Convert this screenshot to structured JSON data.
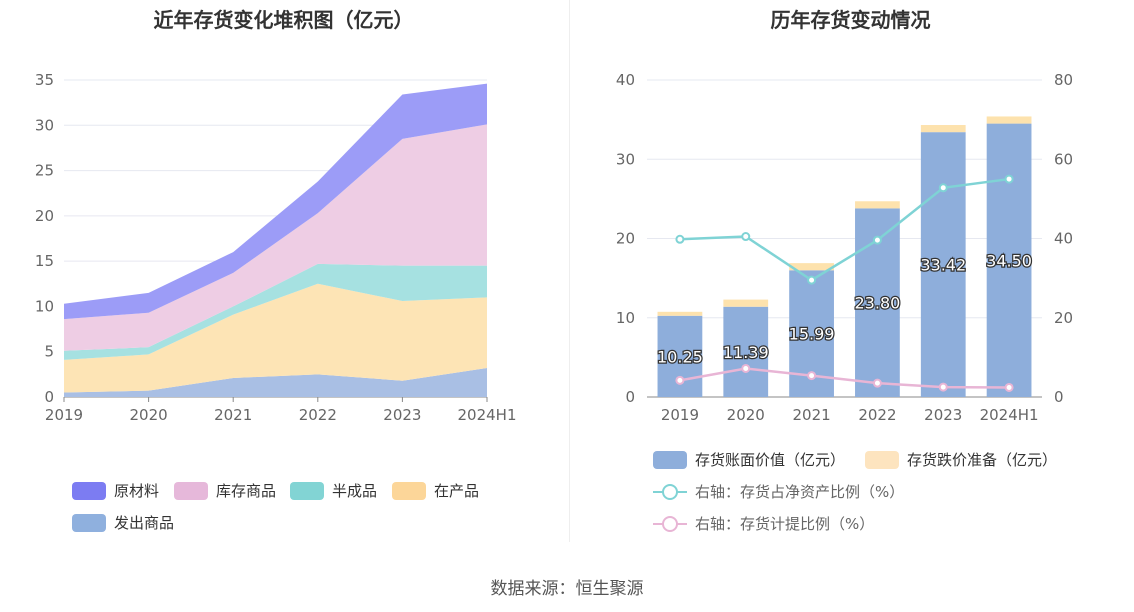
{
  "chart_data": [
    {
      "type": "area",
      "stacked": true,
      "title": "近年存货变化堆积图（亿元）",
      "categories": [
        "2019",
        "2020",
        "2021",
        "2022",
        "2023",
        "2024H1"
      ],
      "ylim": [
        0,
        35
      ],
      "yticks": [
        "0",
        "5",
        "10",
        "15",
        "20",
        "25",
        "30",
        "35"
      ],
      "grid": true,
      "legend_position": "bottom",
      "series": [
        {
          "name": "发出商品",
          "color": "#a9bfe4",
          "values": [
            0.5,
            0.7,
            2.1,
            2.5,
            1.8,
            3.2
          ]
        },
        {
          "name": "在产品",
          "color": "#fde4b5",
          "values": [
            3.6,
            4.0,
            7.0,
            10.0,
            8.8,
            7.8
          ]
        },
        {
          "name": "半成品",
          "color": "#a6e1e1",
          "values": [
            1.0,
            0.8,
            0.9,
            2.2,
            3.9,
            3.5
          ]
        },
        {
          "name": "库存商品",
          "color": "#eecde4",
          "values": [
            3.5,
            3.8,
            3.7,
            5.6,
            14.0,
            15.6
          ]
        },
        {
          "name": "原材料",
          "color": "#9c9cf7",
          "values": [
            1.7,
            2.2,
            2.3,
            3.5,
            4.9,
            4.5
          ]
        }
      ],
      "legend": [
        {
          "name": "原材料",
          "color": "#7c7cf2"
        },
        {
          "name": "库存商品",
          "color": "#e6b8da"
        },
        {
          "name": "半成品",
          "color": "#82d4d4"
        },
        {
          "name": "在产品",
          "color": "#fcd699"
        },
        {
          "name": "发出商品",
          "color": "#8fb0de"
        }
      ]
    },
    {
      "type": "bar+line",
      "stacked": true,
      "title": "历年存货变动情况",
      "categories": [
        "2019",
        "2020",
        "2021",
        "2022",
        "2023",
        "2024H1"
      ],
      "ylim": [
        0,
        40
      ],
      "yticks": [
        "0",
        "10",
        "20",
        "30",
        "40"
      ],
      "y2lim": [
        0,
        80
      ],
      "y2ticks": [
        "0",
        "20",
        "40",
        "60",
        "80"
      ],
      "grid": true,
      "legend_position": "bottom",
      "bars": [
        {
          "name": "存货账面价值（亿元）",
          "color": "#8eaedb",
          "values": [
            10.25,
            11.39,
            15.99,
            23.8,
            33.42,
            34.5
          ],
          "labels": [
            "10.25",
            "11.39",
            "15.99",
            "23.80",
            "33.42",
            "34.50"
          ]
        },
        {
          "name": "存货跌价准备（亿元）",
          "color": "#fde2ad",
          "values": [
            0.5,
            0.9,
            0.9,
            0.9,
            0.9,
            0.9
          ]
        }
      ],
      "lines": [
        {
          "name": "右轴：存货占净资产比例（%）",
          "color": "#7fd3d5",
          "axis": "right",
          "values": [
            39.8,
            40.5,
            29.5,
            39.6,
            52.8,
            55.0
          ]
        },
        {
          "name": "右轴：存货计提比例（%）",
          "color": "#e8b5d5",
          "axis": "right",
          "values": [
            4.2,
            7.2,
            5.4,
            3.5,
            2.5,
            2.4
          ]
        }
      ],
      "legend": [
        {
          "name": "存货账面价值（亿元）",
          "color": "#8eaedb",
          "kind": "bar"
        },
        {
          "name": "存货跌价准备（亿元）",
          "color": "#fde4bf",
          "kind": "bar"
        },
        {
          "name": "右轴：存货占净资产比例（%）",
          "color": "#7fd3d5",
          "kind": "line"
        },
        {
          "name": "右轴：存货计提比例（%）",
          "color": "#e8b5d5",
          "kind": "line"
        }
      ]
    }
  ],
  "footer": {
    "source": "数据来源：恒生聚源"
  }
}
